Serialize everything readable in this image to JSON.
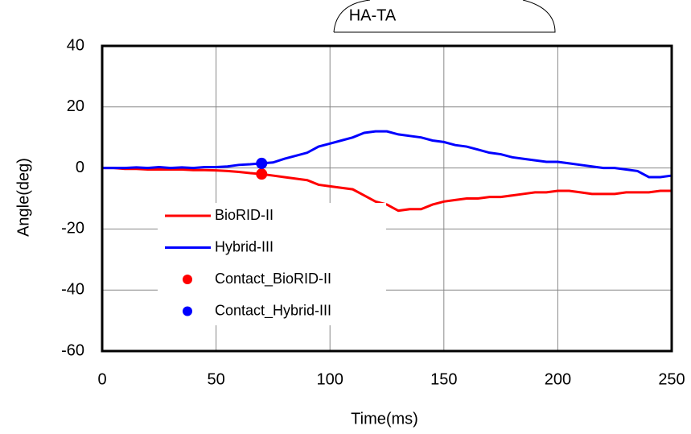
{
  "chart_data": {
    "type": "line",
    "title": "HA-TA",
    "x_label": "Time(ms)",
    "y_label": "Angle(deg)",
    "x": [
      0,
      5,
      10,
      15,
      20,
      25,
      30,
      35,
      40,
      45,
      50,
      55,
      60,
      65,
      70,
      75,
      80,
      85,
      90,
      95,
      100,
      105,
      110,
      115,
      120,
      125,
      130,
      135,
      140,
      145,
      150,
      155,
      160,
      165,
      170,
      175,
      180,
      185,
      190,
      195,
      200,
      205,
      210,
      215,
      220,
      225,
      230,
      235,
      240,
      245,
      250
    ],
    "series": [
      {
        "name": "BioRID-II",
        "type": "line",
        "color": "#ff0000",
        "values": [
          0,
          0,
          -0.3,
          -0.3,
          -0.5,
          -0.5,
          -0.5,
          -0.5,
          -0.7,
          -0.7,
          -0.8,
          -1,
          -1.3,
          -1.7,
          -2,
          -2.5,
          -3,
          -3.5,
          -4,
          -5.5,
          -6,
          -6.5,
          -7,
          -9,
          -11,
          -12,
          -14,
          -13.5,
          -13.5,
          -12,
          -11,
          -10.5,
          -10,
          -10,
          -9.5,
          -9.5,
          -9,
          -8.5,
          -8,
          -8,
          -7.5,
          -7.5,
          -8,
          -8.5,
          -8.5,
          -8.5,
          -8,
          -8,
          -8,
          -7.5,
          -7.5
        ]
      },
      {
        "name": "Hybrid-III",
        "type": "line",
        "color": "#0000ff",
        "values": [
          0,
          0,
          0,
          0.2,
          0,
          0.3,
          0,
          0.2,
          0,
          0.3,
          0.3,
          0.5,
          1,
          1.2,
          1.5,
          1.8,
          3,
          4,
          5,
          7,
          8,
          9,
          10,
          11.5,
          12,
          12,
          11,
          10.5,
          10,
          9,
          8.5,
          7.5,
          7,
          6,
          5,
          4.5,
          3.5,
          3,
          2.5,
          2,
          2,
          1.5,
          1,
          0.5,
          0,
          0,
          -0.5,
          -1,
          -3,
          -3,
          -2.5
        ]
      },
      {
        "name": "Contact_BioRID-II",
        "type": "scatter",
        "color": "#ff0000",
        "x": [
          70
        ],
        "values": [
          -2
        ]
      },
      {
        "name": "Contact_Hybrid-III",
        "type": "scatter",
        "color": "#0000ff",
        "x": [
          70
        ],
        "values": [
          1.5
        ]
      }
    ],
    "xlim": [
      0,
      250
    ],
    "xticks": [
      0,
      50,
      100,
      150,
      200,
      250
    ],
    "ylim": [
      -60,
      40
    ],
    "yticks": [
      -60,
      -40,
      -20,
      0,
      20,
      40
    ],
    "grid": true
  }
}
